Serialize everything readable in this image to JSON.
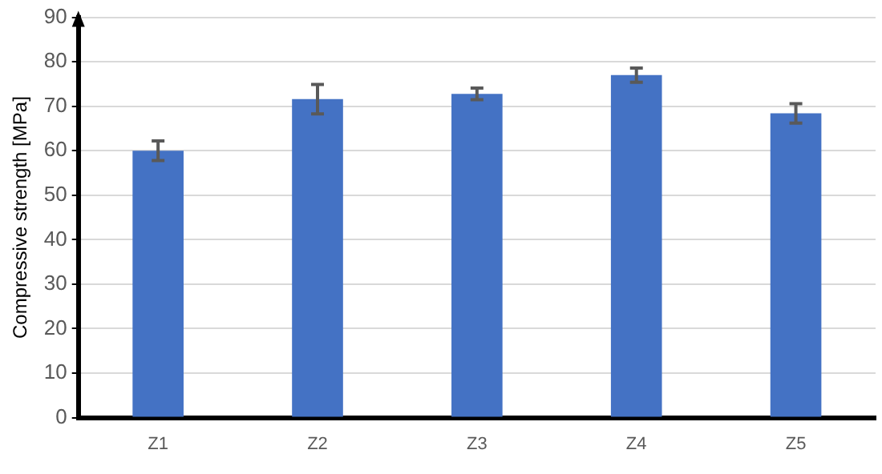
{
  "chart_data": {
    "type": "bar",
    "ylabel": "Compressive strength [MPa]",
    "categories": [
      "Z1",
      "Z2",
      "Z3",
      "Z4",
      "Z5"
    ],
    "values": [
      60,
      71.6,
      72.8,
      77,
      68.4
    ],
    "errors": [
      2.2,
      3.3,
      1.3,
      1.6,
      2.2
    ],
    "color": "#4472c4",
    "ylim": [
      0,
      90
    ],
    "yticks": [
      0,
      10,
      20,
      30,
      40,
      50,
      60,
      70,
      80,
      90
    ],
    "grid": "y",
    "legend": false
  }
}
